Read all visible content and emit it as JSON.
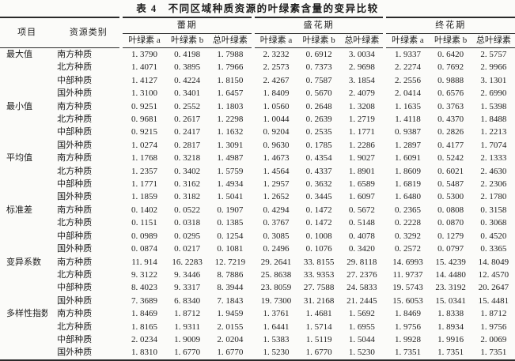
{
  "page": {
    "background": "#fbfbf9",
    "text_color": "#1d1d1d",
    "border_color": "#2a2a2a"
  },
  "title": "表 4　不同区域种质资源的叶绿素含量的变异比较",
  "table": {
    "header": {
      "item": "项目",
      "category": "资源类别",
      "groups": [
        "蕾期",
        "盛花期",
        "终花期"
      ],
      "subcolumns": [
        "叶绿素 a",
        "叶绿素 b",
        "总叶绿素"
      ]
    },
    "rows": [
      {
        "item": "最大值",
        "category": "南方种质",
        "values": [
          "1.3790",
          "0.4198",
          "1.7988",
          "2.3232",
          "0.6912",
          "3.0034",
          "1.9337",
          "0.6420",
          "2.5757"
        ]
      },
      {
        "item": "",
        "category": "北方种质",
        "values": [
          "1.4071",
          "0.3895",
          "1.7966",
          "2.2573",
          "0.7373",
          "2.9698",
          "2.2274",
          "0.7692",
          "2.9966"
        ]
      },
      {
        "item": "",
        "category": "中部种质",
        "values": [
          "1.4127",
          "0.4224",
          "1.8150",
          "2.4267",
          "0.7587",
          "3.1854",
          "2.2556",
          "0.9888",
          "3.1301"
        ]
      },
      {
        "item": "",
        "category": "国外种质",
        "values": [
          "1.3100",
          "0.3401",
          "1.6457",
          "1.8409",
          "0.5670",
          "2.4079",
          "2.0414",
          "0.6576",
          "2.6990"
        ]
      },
      {
        "item": "最小值",
        "category": "南方种质",
        "values": [
          "0.9251",
          "0.2552",
          "1.1803",
          "1.0560",
          "0.2648",
          "1.3208",
          "1.1635",
          "0.3763",
          "1.5398"
        ]
      },
      {
        "item": "",
        "category": "北方种质",
        "values": [
          "0.9681",
          "0.2617",
          "1.2298",
          "1.0044",
          "0.2639",
          "1.2719",
          "1.4118",
          "0.4370",
          "1.8488"
        ]
      },
      {
        "item": "",
        "category": "中部种质",
        "values": [
          "0.9215",
          "0.2417",
          "1.1632",
          "0.9204",
          "0.2535",
          "1.1771",
          "0.9387",
          "0.2826",
          "1.2213"
        ]
      },
      {
        "item": "",
        "category": "国外种质",
        "values": [
          "1.0274",
          "0.2817",
          "1.3091",
          "0.9630",
          "0.1785",
          "1.2286",
          "1.2897",
          "0.4177",
          "1.7074"
        ]
      },
      {
        "item": "平均值",
        "category": "南方种质",
        "values": [
          "1.1768",
          "0.3218",
          "1.4987",
          "1.4673",
          "0.4354",
          "1.9027",
          "1.6091",
          "0.5242",
          "2.1333"
        ]
      },
      {
        "item": "",
        "category": "北方种质",
        "values": [
          "1.2357",
          "0.3402",
          "1.5759",
          "1.4564",
          "0.4337",
          "1.8901",
          "1.8609",
          "0.6021",
          "2.4630"
        ]
      },
      {
        "item": "",
        "category": "中部种质",
        "values": [
          "1.1771",
          "0.3162",
          "1.4934",
          "1.2957",
          "0.3632",
          "1.6589",
          "1.6819",
          "0.5487",
          "2.2306"
        ]
      },
      {
        "item": "",
        "category": "国外种质",
        "values": [
          "1.1859",
          "0.3182",
          "1.5041",
          "1.2652",
          "0.3445",
          "1.6097",
          "1.6480",
          "0.5300",
          "2.1780"
        ]
      },
      {
        "item": "标准差",
        "category": "南方种质",
        "values": [
          "0.1402",
          "0.0522",
          "0.1907",
          "0.4294",
          "0.1472",
          "0.5672",
          "0.2365",
          "0.0808",
          "0.3158"
        ]
      },
      {
        "item": "",
        "category": "北方种质",
        "values": [
          "0.1151",
          "0.0318",
          "0.1385",
          "0.3767",
          "0.1472",
          "0.5148",
          "0.2228",
          "0.0870",
          "0.3068"
        ]
      },
      {
        "item": "",
        "category": "中部种质",
        "values": [
          "0.0989",
          "0.0295",
          "0.1254",
          "0.3085",
          "0.1008",
          "0.4078",
          "0.3292",
          "0.1279",
          "0.4520"
        ]
      },
      {
        "item": "",
        "category": "国外种质",
        "values": [
          "0.0874",
          "0.0217",
          "0.1081",
          "0.2496",
          "0.1076",
          "0.3420",
          "0.2572",
          "0.0797",
          "0.3365"
        ]
      },
      {
        "item": "变异系数",
        "category": "南方种质",
        "values": [
          "11.914",
          "16.2283",
          "12.7219",
          "29.2641",
          "33.8155",
          "29.8118",
          "14.6993",
          "15.4239",
          "14.8049"
        ]
      },
      {
        "item": "",
        "category": "北方种质",
        "values": [
          "9.3122",
          "9.3446",
          "8.7886",
          "25.8638",
          "33.9353",
          "27.2376",
          "11.9737",
          "14.4480",
          "12.4570"
        ]
      },
      {
        "item": "",
        "category": "中部种质",
        "values": [
          "8.4023",
          "9.3317",
          "8.3944",
          "23.8059",
          "27.7588",
          "24.5833",
          "19.5743",
          "23.3192",
          "20.2647"
        ]
      },
      {
        "item": "",
        "category": "国外种质",
        "values": [
          "7.3689",
          "6.8340",
          "7.1843",
          "19.7300",
          "31.2168",
          "21.2445",
          "15.6053",
          "15.0341",
          "15.4481"
        ]
      },
      {
        "item": "多样性指数",
        "category": "南方种质",
        "values": [
          "1.8469",
          "1.8712",
          "1.9459",
          "1.3761",
          "1.4681",
          "1.5692",
          "1.8469",
          "1.8338",
          "1.8712"
        ]
      },
      {
        "item": "",
        "category": "北方种质",
        "values": [
          "1.8165",
          "1.9311",
          "2.0155",
          "1.6441",
          "1.5714",
          "1.6955",
          "1.9756",
          "1.8934",
          "1.9756"
        ]
      },
      {
        "item": "",
        "category": "中部种质",
        "values": [
          "2.0234",
          "1.9009",
          "2.0204",
          "1.5383",
          "1.5119",
          "1.5044",
          "1.9928",
          "1.9916",
          "2.0069"
        ]
      },
      {
        "item": "",
        "category": "国外种质",
        "values": [
          "1.8310",
          "1.6770",
          "1.6770",
          "1.5230",
          "1.6770",
          "1.5230",
          "1.7351",
          "1.7351",
          "1.7351"
        ]
      }
    ]
  }
}
